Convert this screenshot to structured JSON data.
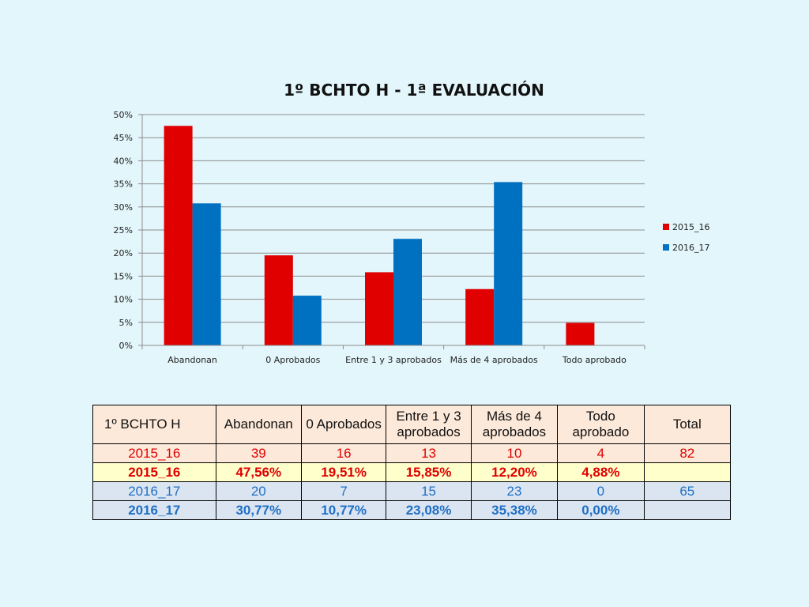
{
  "chart_data": {
    "type": "bar",
    "title": "1º BCHTO H - 1ª EVALUACIÓN",
    "categories": [
      "Abandonan",
      "0 Aprobados",
      "Entre 1 y 3 aprobados",
      "Más de 4 aprobados",
      "Todo aprobado"
    ],
    "series": [
      {
        "name": "2015_16",
        "values": [
          47.56,
          19.51,
          15.85,
          12.2,
          4.88
        ],
        "color": "#e00000"
      },
      {
        "name": "2016_17",
        "values": [
          30.77,
          10.77,
          23.08,
          35.38,
          0.0
        ],
        "color": "#0070c0"
      }
    ],
    "ylim": [
      0,
      50
    ],
    "yticks": [
      "0%",
      "5%",
      "10%",
      "15%",
      "20%",
      "25%",
      "30%",
      "35%",
      "40%",
      "45%",
      "50%"
    ],
    "xlabel": "",
    "ylabel": "",
    "grid": true,
    "legend": "right"
  },
  "table": {
    "header": [
      "1º BCHTO H",
      "Abandonan",
      "0 Aprobados",
      "Entre 1 y 3 aprobados",
      "Más de 4 aprobados",
      "Todo aprobado",
      "Total"
    ],
    "rows": [
      [
        "2015_16",
        "39",
        "16",
        "13",
        "10",
        "4",
        "82"
      ],
      [
        "2015_16",
        "47,56%",
        "19,51%",
        "15,85%",
        "12,20%",
        "4,88%",
        ""
      ],
      [
        "2016_17",
        "20",
        "7",
        "15",
        "23",
        "0",
        "65"
      ],
      [
        "2016_17",
        "30,77%",
        "10,77%",
        "23,08%",
        "35,38%",
        "0,00%",
        ""
      ]
    ]
  }
}
